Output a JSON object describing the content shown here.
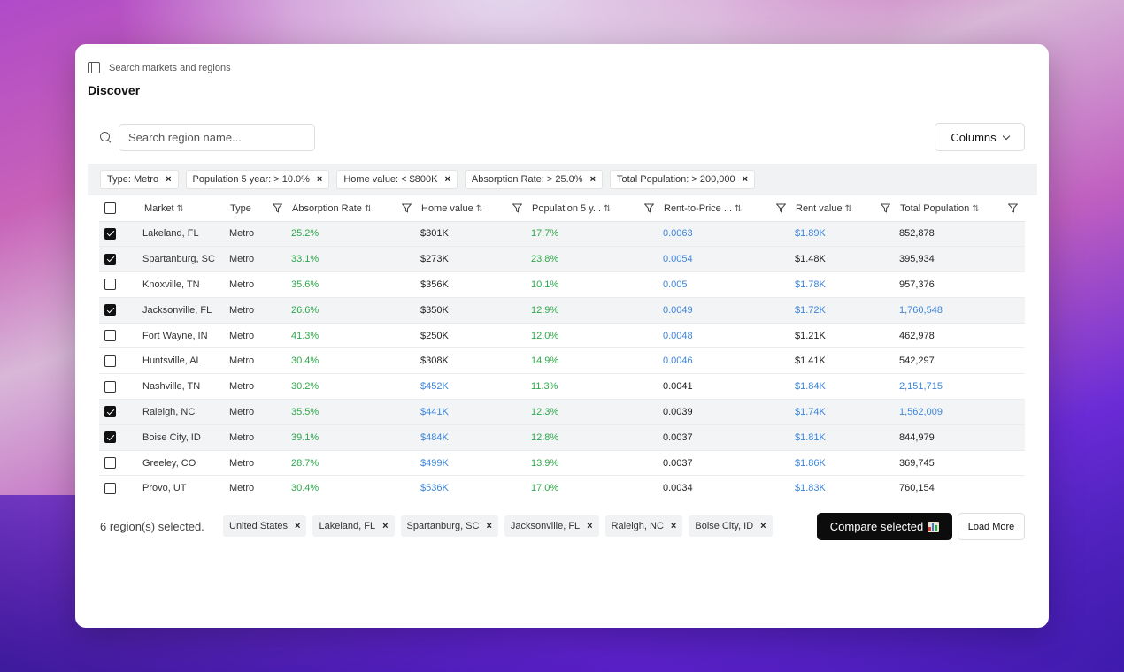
{
  "header": {
    "search_markets_label": "Search markets and regions",
    "title": "Discover"
  },
  "search": {
    "placeholder": "Search region name..."
  },
  "columns_button": "Columns",
  "filters": [
    "Type: Metro",
    "Population 5 year: > 10.0%",
    "Home value: < $800K",
    "Absorption Rate: > 25.0%",
    "Total Population: > 200,000"
  ],
  "table": {
    "columns": [
      "Market",
      "Type",
      "Absorption Rate",
      "Home value",
      "Population 5 y...",
      "Rent-to-Price ...",
      "Rent value",
      "Total Population"
    ],
    "rows": [
      {
        "selected": true,
        "market": "Lakeland, FL",
        "type": "Metro",
        "absorption": "25.2%",
        "home": "$301K",
        "pop5": "17.7%",
        "rtp": "0.0063",
        "rent": "$1.89K",
        "total": "852,878"
      },
      {
        "selected": true,
        "market": "Spartanburg, SC",
        "type": "Metro",
        "absorption": "33.1%",
        "home": "$273K",
        "pop5": "23.8%",
        "rtp": "0.0054",
        "rent": "$1.48K",
        "total": "395,934"
      },
      {
        "selected": false,
        "market": "Knoxville, TN",
        "type": "Metro",
        "absorption": "35.6%",
        "home": "$356K",
        "pop5": "10.1%",
        "rtp": "0.005",
        "rent": "$1.78K",
        "total": "957,376"
      },
      {
        "selected": true,
        "market": "Jacksonville, FL",
        "type": "Metro",
        "absorption": "26.6%",
        "home": "$350K",
        "pop5": "12.9%",
        "rtp": "0.0049",
        "rent": "$1.72K",
        "total": "1,760,548"
      },
      {
        "selected": false,
        "market": "Fort Wayne, IN",
        "type": "Metro",
        "absorption": "41.3%",
        "home": "$250K",
        "pop5": "12.0%",
        "rtp": "0.0048",
        "rent": "$1.21K",
        "total": "462,978"
      },
      {
        "selected": false,
        "market": "Huntsville, AL",
        "type": "Metro",
        "absorption": "30.4%",
        "home": "$308K",
        "pop5": "14.9%",
        "rtp": "0.0046",
        "rent": "$1.41K",
        "total": "542,297"
      },
      {
        "selected": false,
        "market": "Nashville, TN",
        "type": "Metro",
        "absorption": "30.2%",
        "home": "$452K",
        "pop5": "11.3%",
        "rtp": "0.0041",
        "rent": "$1.84K",
        "total": "2,151,715"
      },
      {
        "selected": true,
        "market": "Raleigh, NC",
        "type": "Metro",
        "absorption": "35.5%",
        "home": "$441K",
        "pop5": "12.3%",
        "rtp": "0.0039",
        "rent": "$1.74K",
        "total": "1,562,009"
      },
      {
        "selected": true,
        "market": "Boise City, ID",
        "type": "Metro",
        "absorption": "39.1%",
        "home": "$484K",
        "pop5": "12.8%",
        "rtp": "0.0037",
        "rent": "$1.81K",
        "total": "844,979"
      },
      {
        "selected": false,
        "market": "Greeley, CO",
        "type": "Metro",
        "absorption": "28.7%",
        "home": "$499K",
        "pop5": "13.9%",
        "rtp": "0.0037",
        "rent": "$1.86K",
        "total": "369,745"
      },
      {
        "selected": false,
        "market": "Provo, UT",
        "type": "Metro",
        "absorption": "30.4%",
        "home": "$536K",
        "pop5": "17.0%",
        "rtp": "0.0034",
        "rent": "$1.83K",
        "total": "760,154"
      }
    ]
  },
  "colors": {
    "green": "#2ea84b",
    "blue": "#3d84d6",
    "dark": "#222222"
  },
  "cell_colors": {
    "home": [
      "dark",
      "dark",
      "dark",
      "dark",
      "dark",
      "dark",
      "blue",
      "blue",
      "blue",
      "blue",
      "blue"
    ],
    "rtp": [
      "blue",
      "blue",
      "blue",
      "blue",
      "blue",
      "blue",
      "dark",
      "dark",
      "dark",
      "dark",
      "dark"
    ],
    "rent": [
      "blue",
      "dark",
      "blue",
      "blue",
      "dark",
      "dark",
      "blue",
      "blue",
      "blue",
      "blue",
      "blue"
    ],
    "total": [
      "dark",
      "dark",
      "dark",
      "blue",
      "dark",
      "dark",
      "blue",
      "blue",
      "dark",
      "dark",
      "dark"
    ]
  },
  "footer": {
    "selected_count": "6 region(s) selected.",
    "selected_chips": [
      "United States",
      "Lakeland, FL",
      "Spartanburg, SC",
      "Jacksonville, FL",
      "Raleigh, NC",
      "Boise City, ID"
    ],
    "compare_label": "Compare selected",
    "compare_icon": "bar-chart-icon",
    "load_more_label": "Load More"
  }
}
